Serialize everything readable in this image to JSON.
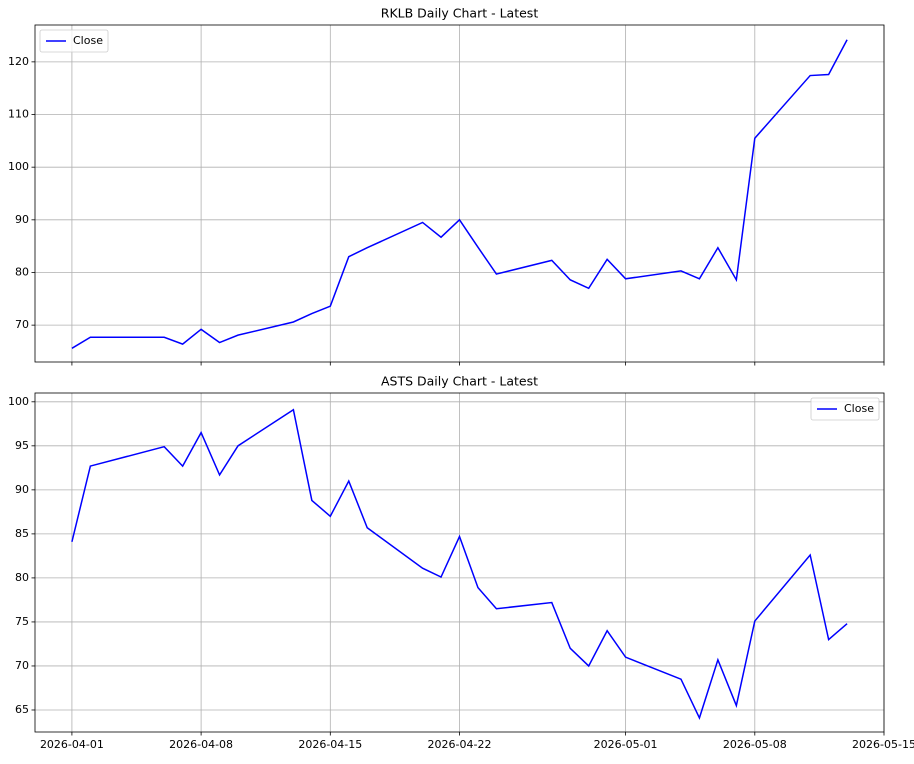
{
  "chart_data": [
    {
      "type": "line",
      "title": "RKLB Daily Chart - Latest",
      "x": [
        "2026-04-01",
        "2026-04-02",
        "2026-04-06",
        "2026-04-07",
        "2026-04-08",
        "2026-04-09",
        "2026-04-10",
        "2026-04-13",
        "2026-04-14",
        "2026-04-15",
        "2026-04-16",
        "2026-04-17",
        "2026-04-20",
        "2026-04-21",
        "2026-04-22",
        "2026-04-23",
        "2026-04-24",
        "2026-04-27",
        "2026-04-28",
        "2026-04-29",
        "2026-04-30",
        "2026-05-01",
        "2026-05-04",
        "2026-05-05",
        "2026-05-06",
        "2026-05-07",
        "2026-05-08",
        "2026-05-11",
        "2026-05-12",
        "2026-05-13"
      ],
      "series": [
        {
          "name": "Close",
          "color": "#0000ff",
          "values": [
            65.6,
            67.7,
            67.7,
            66.4,
            69.2,
            66.7,
            68.1,
            70.6,
            72.2,
            73.6,
            83.0,
            84.7,
            89.5,
            86.7,
            90.0,
            84.8,
            79.7,
            82.3,
            78.6,
            77.0,
            82.5,
            78.8,
            80.3,
            78.8,
            84.7,
            78.6,
            105.5,
            117.4,
            117.6,
            124.2
          ]
        }
      ],
      "xlim": [
        "2026-03-30",
        "2026-05-15"
      ],
      "xticks": [
        "2026-04-01",
        "2026-04-08",
        "2026-04-15",
        "2026-04-22",
        "2026-05-01",
        "2026-05-08",
        "2026-05-15"
      ],
      "ylim": [
        63,
        127
      ],
      "yticks": [
        70,
        80,
        90,
        100,
        110,
        120
      ],
      "grid": true,
      "legend": "upper left"
    },
    {
      "type": "line",
      "title": "ASTS Daily Chart - Latest",
      "x": [
        "2026-04-01",
        "2026-04-02",
        "2026-04-06",
        "2026-04-07",
        "2026-04-08",
        "2026-04-09",
        "2026-04-10",
        "2026-04-13",
        "2026-04-14",
        "2026-04-15",
        "2026-04-16",
        "2026-04-17",
        "2026-04-20",
        "2026-04-21",
        "2026-04-22",
        "2026-04-23",
        "2026-04-24",
        "2026-04-27",
        "2026-04-28",
        "2026-04-29",
        "2026-04-30",
        "2026-05-01",
        "2026-05-04",
        "2026-05-05",
        "2026-05-06",
        "2026-05-07",
        "2026-05-08",
        "2026-05-11",
        "2026-05-12",
        "2026-05-13"
      ],
      "series": [
        {
          "name": "Close",
          "color": "#0000ff",
          "values": [
            84.1,
            92.7,
            94.9,
            92.7,
            96.5,
            91.7,
            95.0,
            99.1,
            88.8,
            87.0,
            91.0,
            85.7,
            81.1,
            80.1,
            84.7,
            78.9,
            76.5,
            77.2,
            72.0,
            70.0,
            74.0,
            71.0,
            68.5,
            64.1,
            70.7,
            65.5,
            75.1,
            82.6,
            73.0,
            74.8
          ]
        }
      ],
      "xlim": [
        "2026-03-30",
        "2026-05-15"
      ],
      "xticks": [
        "2026-04-01",
        "2026-04-08",
        "2026-04-15",
        "2026-04-22",
        "2026-05-01",
        "2026-05-08",
        "2026-05-15"
      ],
      "ylim": [
        62.5,
        101
      ],
      "yticks": [
        65,
        70,
        75,
        80,
        85,
        90,
        95,
        100
      ],
      "grid": true,
      "legend": "upper right"
    }
  ]
}
